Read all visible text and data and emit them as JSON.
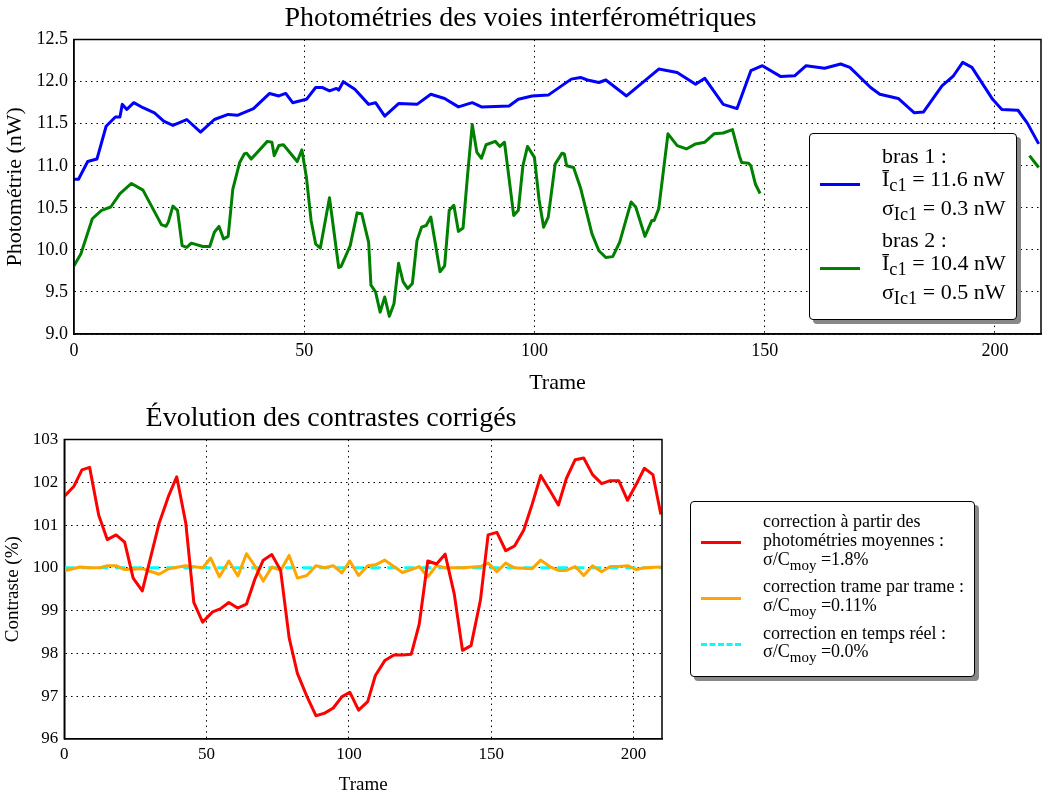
{
  "chart_data": [
    {
      "type": "line",
      "title": "Photométries des voies interférométriques",
      "xlabel": "Trame",
      "ylabel": "Photométrie (nW)",
      "xlim": [
        0,
        210
      ],
      "xticks": [
        0,
        50,
        100,
        150,
        200
      ],
      "ylim": [
        9.0,
        12.5
      ],
      "yticks": [
        {
          "value": 9.0,
          "label": "9.0"
        },
        {
          "value": 9.5,
          "label": "9.5"
        },
        {
          "value": 10.0,
          "label": "10.0"
        },
        {
          "value": 10.5,
          "label": "10.5"
        },
        {
          "value": 11.0,
          "label": "11.0"
        },
        {
          "value": 11.5,
          "label": "11.5"
        },
        {
          "value": 12.0,
          "label": "12.0"
        },
        {
          "value": 12.5,
          "label": "12.5"
        }
      ],
      "grid": true,
      "legend": "lower right",
      "marker": "none",
      "line_style": "solid",
      "series": [
        {
          "name": "bras 1 :\nĪ$_{c1}$ = 11.6 nW\nσ$_{Ic1}$ = 0.3 nW",
          "color": "#0000ff",
          "x": [
            0,
            1,
            3,
            5,
            7,
            9,
            10,
            10.5,
            11.5,
            13,
            15,
            17.5,
            19.5,
            21.5,
            24.5,
            27.5,
            30.5,
            33.5,
            35.5,
            39,
            42.5,
            44.5,
            46,
            47.5,
            50.5,
            52.5,
            54,
            55.5,
            57,
            57.5,
            58.5,
            61,
            64,
            65.5,
            67.5,
            70.5,
            74.5,
            77.5,
            80.5,
            83.5,
            86.5,
            88.5,
            94.5,
            96.5,
            99.5,
            103,
            108,
            110,
            111.5,
            114,
            115.5,
            120,
            127,
            131,
            135,
            137,
            141,
            144,
            147,
            149.5,
            153.5,
            156.5,
            159,
            163,
            166.5,
            168.5,
            173,
            175,
            179,
            182.5,
            184.5,
            188.5,
            191,
            193,
            195,
            199.5,
            201.5,
            205,
            207,
            209.5
          ],
          "values": [
            10.84,
            10.84,
            11.05,
            11.08,
            11.47,
            11.58,
            11.58,
            11.73,
            11.67,
            11.75,
            11.69,
            11.63,
            11.53,
            11.48,
            11.55,
            11.4,
            11.55,
            11.61,
            11.6,
            11.68,
            11.86,
            11.83,
            11.86,
            11.75,
            11.79,
            11.93,
            11.93,
            11.89,
            11.92,
            11.9,
            12.0,
            11.91,
            11.73,
            11.75,
            11.59,
            11.74,
            11.73,
            11.85,
            11.8,
            11.7,
            11.75,
            11.7,
            11.71,
            11.79,
            11.83,
            11.84,
            12.03,
            12.05,
            12.02,
            11.99,
            12.02,
            11.83,
            12.15,
            12.11,
            11.97,
            12.04,
            11.73,
            11.68,
            12.13,
            12.19,
            12.06,
            12.07,
            12.19,
            12.16,
            12.21,
            12.17,
            11.93,
            11.85,
            11.8,
            11.63,
            11.64,
            11.95,
            12.07,
            12.23,
            12.17,
            11.79,
            11.67,
            11.66,
            11.51,
            11.26
          ]
        },
        {
          "name": "bras 2 :\nĪ$_{c1}$ = 10.4 nW\nσ$_{Ic1}$ = 0.5 nW",
          "color": "#008000",
          "x": [
            0,
            1.5,
            4,
            6,
            8,
            10,
            12.5,
            15,
            19,
            20,
            20.5,
            21.5,
            22.5,
            23.5,
            24.5,
            25.5,
            28,
            29.5,
            30.5,
            31.5,
            32.5,
            33.5,
            34.5,
            36,
            37,
            37.5,
            38.5,
            42,
            43,
            43.5,
            44.5,
            45.5,
            48.5,
            49.5,
            50.5,
            51.5,
            52.5,
            53.5,
            55.5,
            57.5,
            58,
            60,
            61.5,
            62.5,
            64,
            64.5,
            65.5,
            66.5,
            67.5,
            68.5,
            69.5,
            70.5,
            71.5,
            72.5,
            73.5,
            74.5,
            75.5,
            76.5,
            77.5,
            78.5,
            79.5,
            80.5,
            81.5,
            82.5,
            83.5,
            84.5,
            85.5,
            86.5,
            87.5,
            88.5,
            89.5,
            91.5,
            92.5,
            93.5,
            95.5,
            96.5,
            97.5,
            98.5,
            100,
            101,
            102,
            103,
            104.5,
            106,
            106.5,
            107,
            108.5,
            110,
            112.5,
            114,
            115.5,
            117,
            118.5,
            121,
            122,
            124,
            125.5,
            126,
            127,
            129,
            131,
            133,
            135,
            137,
            139,
            141,
            143,
            144.5,
            145,
            146.5,
            147,
            148,
            149,
            150,
            207.5,
            209.5
          ],
          "values": [
            9.81,
            9.95,
            10.37,
            10.47,
            10.51,
            10.67,
            10.79,
            10.71,
            10.3,
            10.28,
            10.33,
            10.52,
            10.47,
            10.05,
            10.03,
            10.08,
            10.04,
            10.04,
            10.21,
            10.28,
            10.13,
            10.16,
            10.72,
            11.04,
            11.14,
            11.15,
            11.08,
            11.29,
            11.28,
            11.12,
            11.24,
            11.25,
            11.05,
            11.19,
            10.86,
            10.35,
            10.07,
            10.02,
            10.62,
            9.79,
            9.8,
            10.05,
            10.44,
            10.43,
            10.09,
            9.58,
            9.5,
            9.26,
            9.44,
            9.21,
            9.36,
            9.84,
            9.62,
            9.54,
            9.6,
            10.11,
            10.27,
            10.29,
            10.39,
            10.07,
            9.74,
            9.81,
            10.47,
            10.53,
            10.22,
            10.26,
            10.9,
            11.49,
            11.16,
            11.09,
            11.25,
            11.29,
            11.23,
            11.28,
            10.41,
            10.47,
            11.0,
            11.23,
            11.1,
            10.6,
            10.27,
            10.39,
            11.02,
            11.15,
            11.14,
            11.0,
            10.98,
            10.74,
            10.19,
            9.99,
            9.91,
            9.92,
            10.09,
            10.57,
            10.51,
            10.16,
            10.35,
            10.35,
            10.49,
            11.38,
            11.24,
            11.2,
            11.26,
            11.28,
            11.38,
            11.39,
            11.43,
            11.12,
            11.04,
            11.03,
            11.0,
            10.78,
            10.67,
            null,
            11.12,
            10.98
          ]
        }
      ]
    },
    {
      "type": "line",
      "title": "Évolution des contrastes corrigés",
      "xlabel": "Trame",
      "ylabel": "Contraste (%)",
      "xlim": [
        0,
        210
      ],
      "xticks": [
        0,
        50,
        100,
        150,
        200
      ],
      "ylim": [
        96,
        103
      ],
      "yticks": [
        96,
        97,
        98,
        99,
        100,
        101,
        102,
        103
      ],
      "grid": true,
      "legend": "right",
      "marker": "none",
      "series": [
        {
          "name": "correction à partir des\nphotométries moyennes :\nσ/C$_{moy}$ =1.8%",
          "color": "#ff0000",
          "line_style": "solid",
          "x": [
            0,
            3.4,
            6.2,
            8.9,
            12.1,
            15.1,
            18.2,
            21.2,
            24.2,
            27.4,
            33.3,
            36.7,
            39.5,
            42.7,
            45.5,
            48.6,
            52.1,
            54.8,
            57.8,
            60.9,
            64,
            67.1,
            69.9,
            72.9,
            76,
            79,
            81.9,
            85.2,
            88.4,
            91.5,
            94.5,
            97.5,
            100.3,
            103.4,
            106.6,
            109.3,
            112.6,
            115.8,
            118.8,
            121.9,
            124.7,
            127.7,
            130.8,
            133.8,
            137,
            139.9,
            142.9,
            146.2,
            148.9,
            152,
            155.1,
            158.2,
            161.4,
            164.4,
            167.4,
            170.5,
            173.6,
            176.4,
            179.5,
            182.5,
            185.6,
            188.8,
            191.8,
            194.8,
            197.9,
            201,
            203.8,
            206.8,
            209.6
          ],
          "values": [
            101.67,
            101.91,
            102.29,
            102.35,
            101.23,
            100.66,
            100.77,
            100.6,
            99.76,
            99.46,
            101.04,
            101.69,
            102.13,
            101.04,
            99.19,
            98.73,
            98.97,
            99.04,
            99.19,
            99.06,
            99.15,
            99.76,
            100.18,
            100.31,
            99.94,
            98.36,
            97.53,
            97.0,
            96.54,
            96.6,
            96.72,
            96.98,
            97.09,
            96.67,
            96.87,
            97.48,
            97.83,
            97.96,
            97.96,
            97.98,
            98.68,
            100.16,
            100.09,
            100.32,
            99.39,
            98.07,
            98.18,
            99.24,
            100.77,
            100.83,
            100.4,
            100.51,
            100.88,
            101.49,
            102.16,
            101.82,
            101.47,
            102.09,
            102.53,
            102.57,
            102.18,
            101.97,
            102.04,
            102.04,
            101.58,
            101.96,
            102.33,
            102.18,
            101.25
          ]
        },
        {
          "name": "correction trame par trame :\nσ/C$_{moy}$ =0.11%",
          "color": "#ffa500",
          "line_style": "solid",
          "x": [
            0,
            5.5,
            8.9,
            12.3,
            15.1,
            18.2,
            21.2,
            27.4,
            33.3,
            36.7,
            42.5,
            48.6,
            51.4,
            54.5,
            57.8,
            61,
            64,
            66.8,
            69.9,
            72.9,
            76,
            79,
            81.9,
            85.2,
            88.4,
            91.5,
            94.5,
            97.5,
            100.3,
            103.4,
            106.6,
            109.3,
            112.6,
            115.8,
            118.8,
            121.9,
            124.7,
            127.7,
            130.8,
            133.8,
            139.9,
            146.2,
            148.9,
            152,
            155.1,
            158.2,
            164.4,
            167.4,
            170.5,
            173.6,
            176.4,
            179.5,
            182.5,
            185.6,
            188.8,
            191.8,
            194.8,
            197.9,
            201,
            203.8,
            209.6
          ],
          "values": [
            99.93,
            100.02,
            100.0,
            100.0,
            100.05,
            100.05,
            99.96,
            99.98,
            99.85,
            99.98,
            100.05,
            100.0,
            100.23,
            99.79,
            100.16,
            99.81,
            100.33,
            100.06,
            99.69,
            100.02,
            99.94,
            100.29,
            99.76,
            99.82,
            100.05,
            100.0,
            100.05,
            99.88,
            100.16,
            99.82,
            100.05,
            100.07,
            100.18,
            100.03,
            99.89,
            99.96,
            100.03,
            99.79,
            100.05,
            100.0,
            100.0,
            100.03,
            100.11,
            99.91,
            100.11,
            100.0,
            99.98,
            100.18,
            100.03,
            99.94,
            99.94,
            100.03,
            99.82,
            100.05,
            99.91,
            100.03,
            100.03,
            100.05,
            99.96,
            100.0,
            100.02
          ]
        },
        {
          "name": "correction en temps réel :\nσ/C$_{moy}$ =0.0%",
          "color": "#00ffff",
          "line_style": "dashed",
          "x": [
            0,
            210
          ],
          "values": [
            100,
            100
          ]
        }
      ]
    }
  ]
}
